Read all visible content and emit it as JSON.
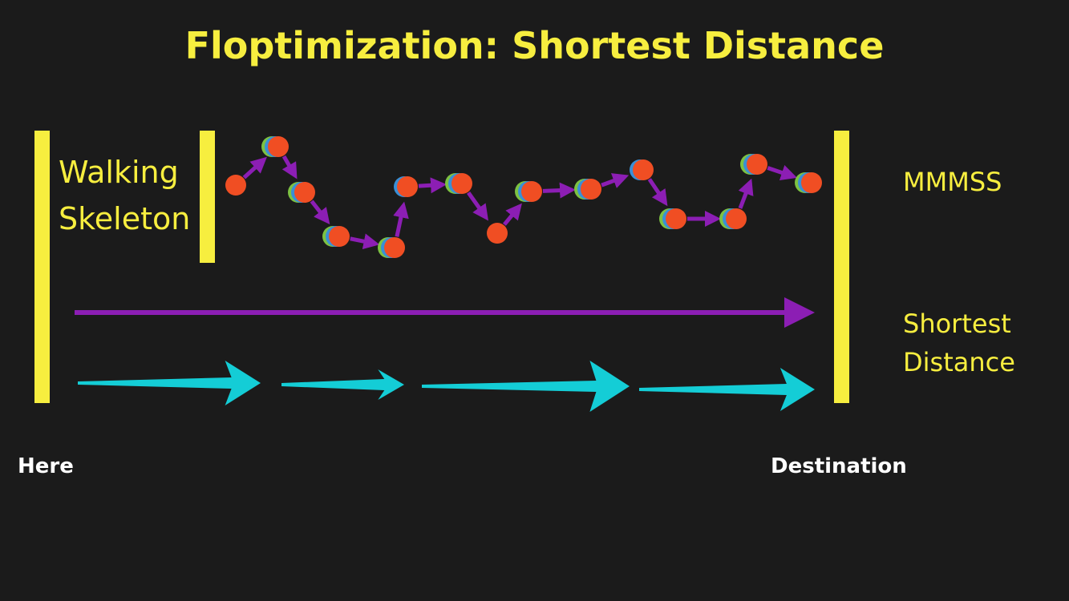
{
  "title": "Floptimization: Shortest Distance",
  "labels": {
    "walking_skeleton": "Walking Skeleton",
    "mmmss": "MMMSS",
    "shortest_distance": "Shortest Distance",
    "here": "Here",
    "destination": "Destination"
  }
}
